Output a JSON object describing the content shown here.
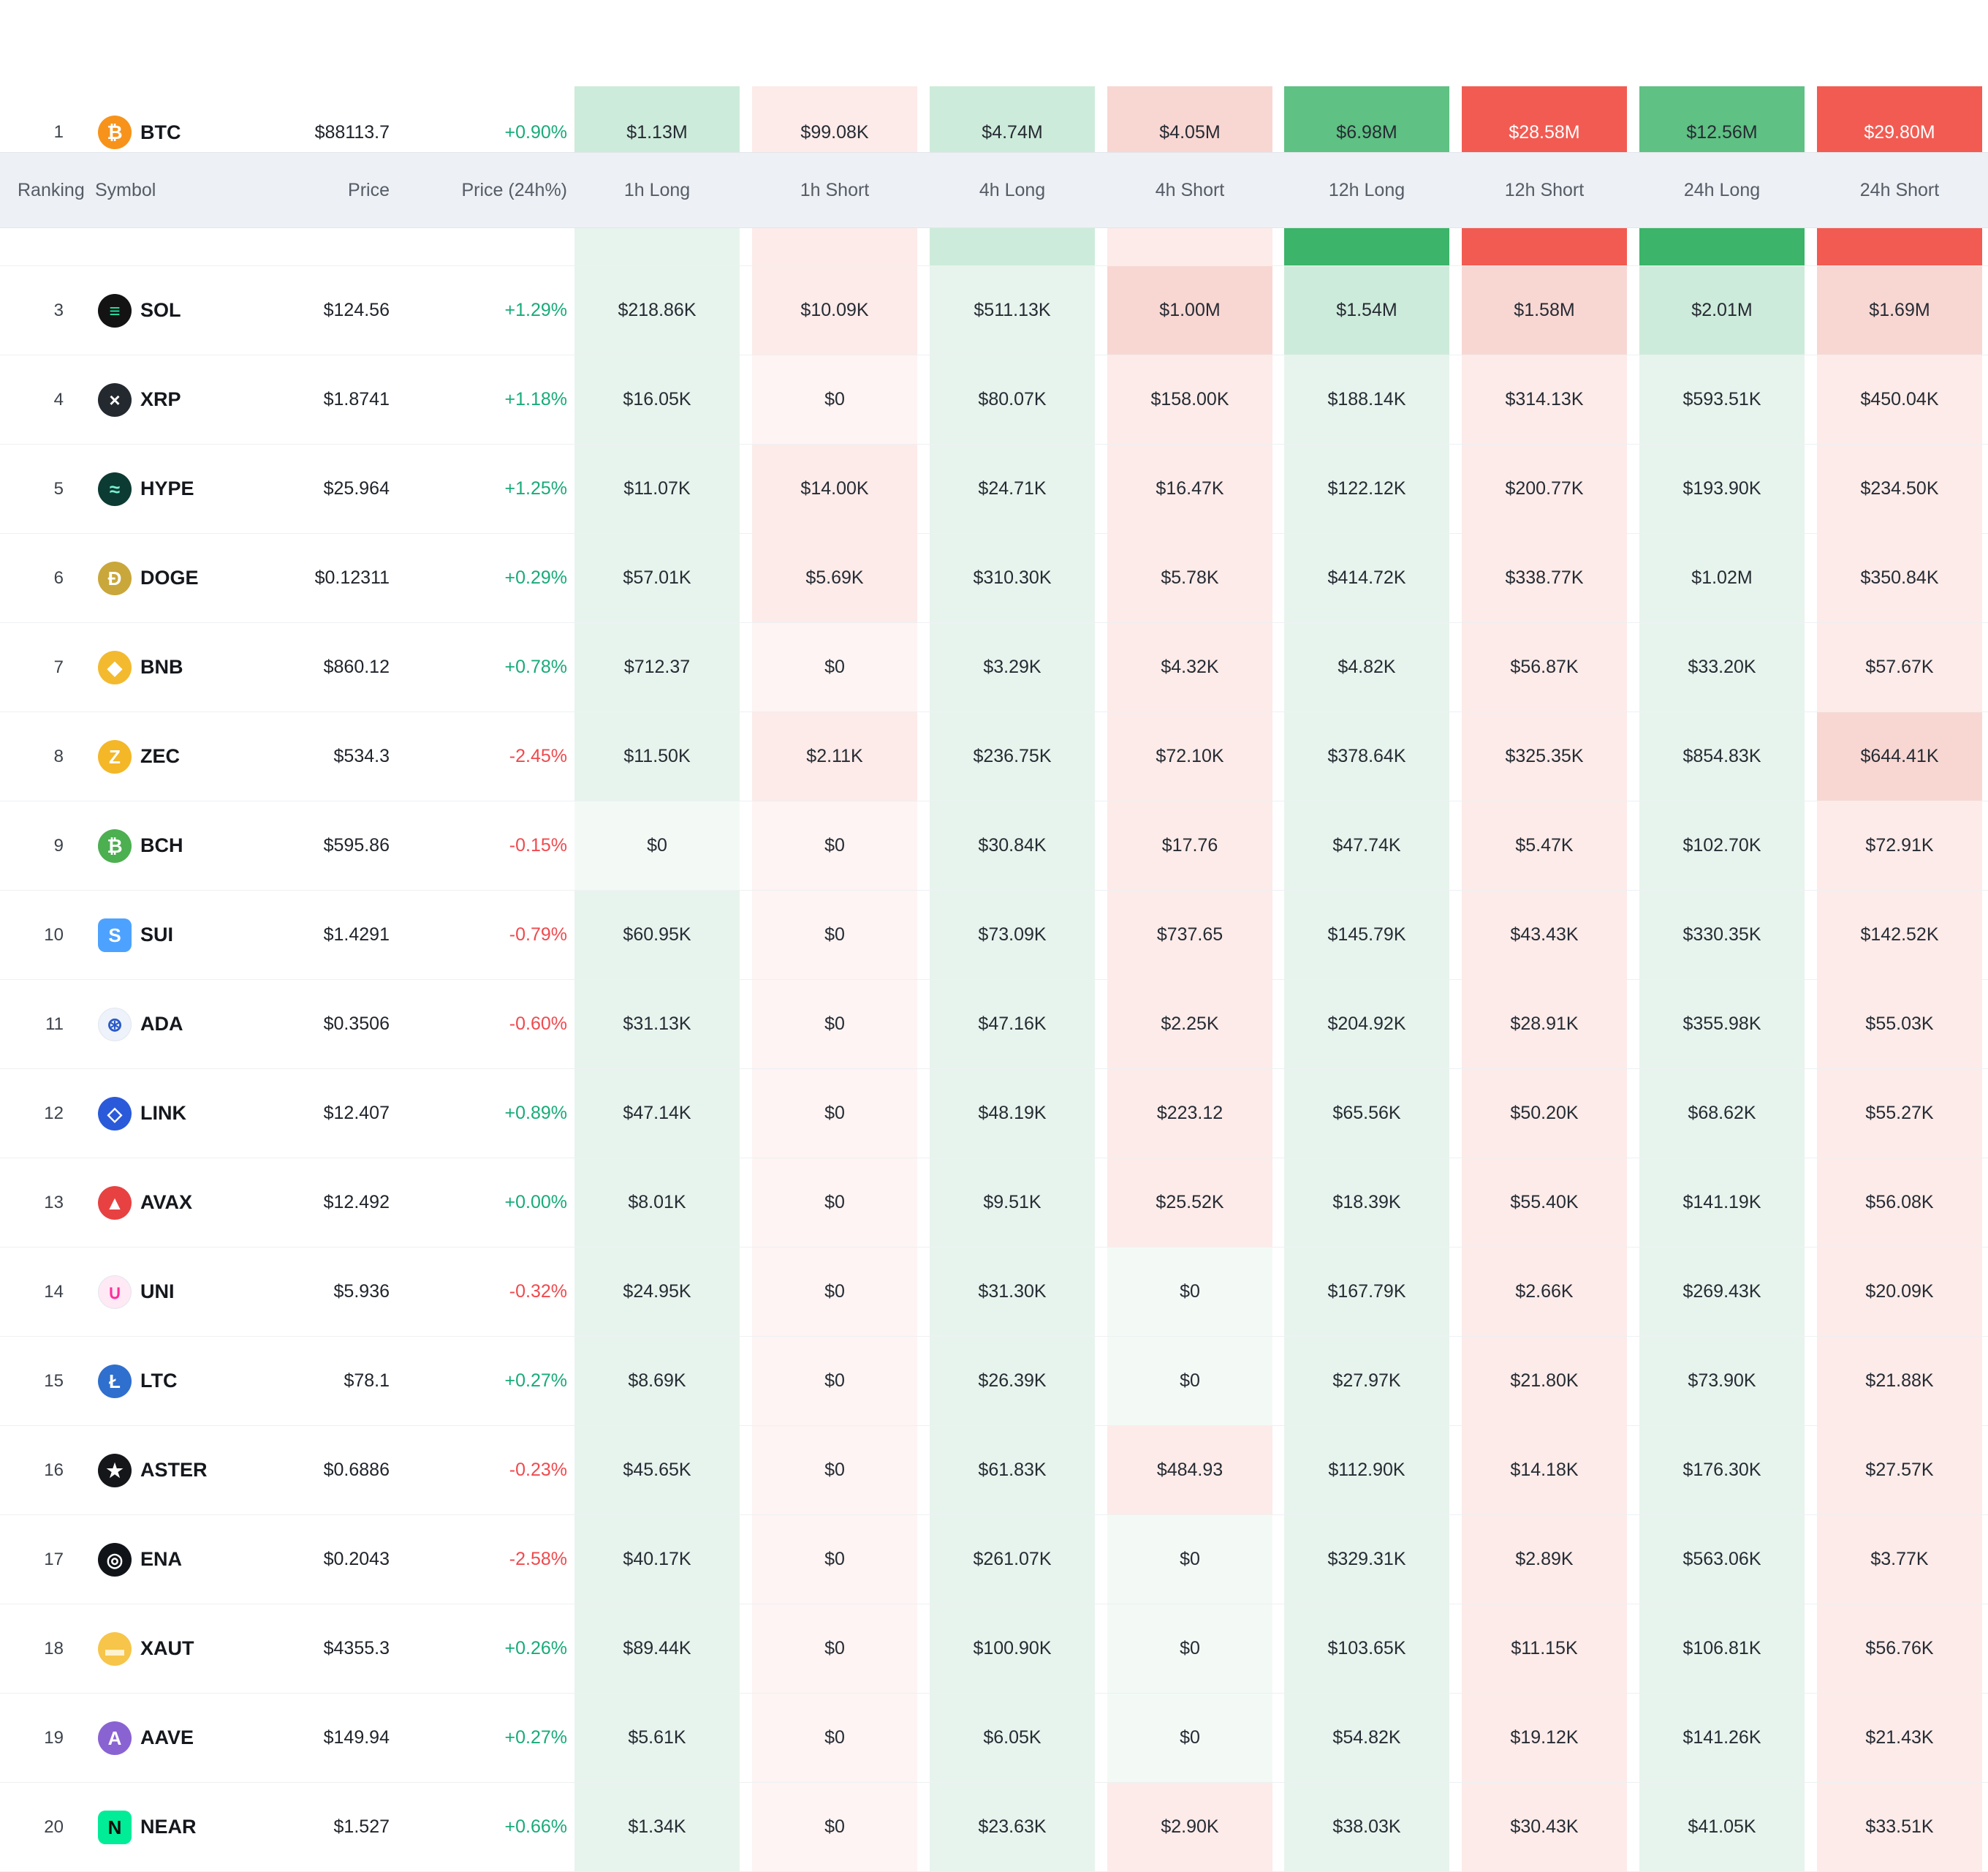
{
  "palette": {
    "g0": "#f3faf6",
    "g1": "#e7f4ed",
    "g2": "#cdebda",
    "g3": "#5fc183",
    "g4": "#3cb469",
    "r0": "#fdf4f3",
    "r1": "#fcebe9",
    "r2": "#f8d7d3",
    "r3": "#f59b93",
    "r4": "#f25b52",
    "pos": "#18ab79",
    "neg": "#ef4a4e",
    "header_bg": "#edf0f4"
  },
  "header": {
    "columns": [
      "Ranking",
      "Symbol",
      "Price",
      "Price (24h%)",
      "1h Long",
      "1h Short",
      "4h Long",
      "4h Short",
      "12h Long",
      "12h Short",
      "24h Long",
      "24h Short"
    ]
  },
  "rows": [
    {
      "rank": "1",
      "symbol": "BTC",
      "price": "$88113.7",
      "change": "+0.90%",
      "dir": "pos",
      "icon": {
        "glyph": "₿",
        "bg": "#f7931a",
        "fg": "#ffffff"
      },
      "cells": [
        {
          "v": "$1.13M",
          "t": "g2"
        },
        {
          "v": "$99.08K",
          "t": "r1"
        },
        {
          "v": "$4.74M",
          "t": "g2"
        },
        {
          "v": "$4.05M",
          "t": "r2"
        },
        {
          "v": "$6.98M",
          "t": "g3"
        },
        {
          "v": "$28.58M",
          "t": "r4"
        },
        {
          "v": "$12.56M",
          "t": "g3"
        },
        {
          "v": "$29.80M",
          "t": "r4"
        }
      ]
    },
    {
      "rank": "",
      "symbol": "",
      "partial": true,
      "cells": [
        {
          "v": "",
          "t": "g1"
        },
        {
          "v": "",
          "t": "r1"
        },
        {
          "v": "",
          "t": "g2"
        },
        {
          "v": "",
          "t": "r1"
        },
        {
          "v": "",
          "t": "g4"
        },
        {
          "v": "",
          "t": "r4"
        },
        {
          "v": "",
          "t": "g4"
        },
        {
          "v": "",
          "t": "r4"
        }
      ]
    },
    {
      "rank": "3",
      "symbol": "SOL",
      "price": "$124.56",
      "change": "+1.29%",
      "dir": "pos",
      "icon": {
        "glyph": "≡",
        "bg": "#131313",
        "fg": "#21e8a3"
      },
      "cells": [
        {
          "v": "$218.86K",
          "t": "g1"
        },
        {
          "v": "$10.09K",
          "t": "r1"
        },
        {
          "v": "$511.13K",
          "t": "g1"
        },
        {
          "v": "$1.00M",
          "t": "r2"
        },
        {
          "v": "$1.54M",
          "t": "g2"
        },
        {
          "v": "$1.58M",
          "t": "r2"
        },
        {
          "v": "$2.01M",
          "t": "g2"
        },
        {
          "v": "$1.69M",
          "t": "r2"
        }
      ]
    },
    {
      "rank": "4",
      "symbol": "XRP",
      "price": "$1.8741",
      "change": "+1.18%",
      "dir": "pos",
      "icon": {
        "glyph": "×",
        "bg": "#23292f",
        "fg": "#ffffff"
      },
      "cells": [
        {
          "v": "$16.05K",
          "t": "g1"
        },
        {
          "v": "$0",
          "t": "r0"
        },
        {
          "v": "$80.07K",
          "t": "g1"
        },
        {
          "v": "$158.00K",
          "t": "r1"
        },
        {
          "v": "$188.14K",
          "t": "g1"
        },
        {
          "v": "$314.13K",
          "t": "r1"
        },
        {
          "v": "$593.51K",
          "t": "g1"
        },
        {
          "v": "$450.04K",
          "t": "r1"
        }
      ]
    },
    {
      "rank": "5",
      "symbol": "HYPE",
      "price": "$25.964",
      "change": "+1.25%",
      "dir": "pos",
      "icon": {
        "glyph": "≈",
        "bg": "#0c3b33",
        "fg": "#79f2d4"
      },
      "cells": [
        {
          "v": "$11.07K",
          "t": "g1"
        },
        {
          "v": "$14.00K",
          "t": "r1"
        },
        {
          "v": "$24.71K",
          "t": "g1"
        },
        {
          "v": "$16.47K",
          "t": "r1"
        },
        {
          "v": "$122.12K",
          "t": "g1"
        },
        {
          "v": "$200.77K",
          "t": "r1"
        },
        {
          "v": "$193.90K",
          "t": "g1"
        },
        {
          "v": "$234.50K",
          "t": "r1"
        }
      ]
    },
    {
      "rank": "6",
      "symbol": "DOGE",
      "price": "$0.12311",
      "change": "+0.29%",
      "dir": "pos",
      "icon": {
        "glyph": "Ð",
        "bg": "#c9a73a",
        "fg": "#ffffff"
      },
      "cells": [
        {
          "v": "$57.01K",
          "t": "g1"
        },
        {
          "v": "$5.69K",
          "t": "r1"
        },
        {
          "v": "$310.30K",
          "t": "g1"
        },
        {
          "v": "$5.78K",
          "t": "r1"
        },
        {
          "v": "$414.72K",
          "t": "g1"
        },
        {
          "v": "$338.77K",
          "t": "r1"
        },
        {
          "v": "$1.02M",
          "t": "g1"
        },
        {
          "v": "$350.84K",
          "t": "r1"
        }
      ]
    },
    {
      "rank": "7",
      "symbol": "BNB",
      "price": "$860.12",
      "change": "+0.78%",
      "dir": "pos",
      "icon": {
        "glyph": "◆",
        "bg": "#f3ba2f",
        "fg": "#ffffff"
      },
      "cells": [
        {
          "v": "$712.37",
          "t": "g1"
        },
        {
          "v": "$0",
          "t": "r0"
        },
        {
          "v": "$3.29K",
          "t": "g1"
        },
        {
          "v": "$4.32K",
          "t": "r1"
        },
        {
          "v": "$4.82K",
          "t": "g1"
        },
        {
          "v": "$56.87K",
          "t": "r1"
        },
        {
          "v": "$33.20K",
          "t": "g1"
        },
        {
          "v": "$57.67K",
          "t": "r1"
        }
      ]
    },
    {
      "rank": "8",
      "symbol": "ZEC",
      "price": "$534.3",
      "change": "-2.45%",
      "dir": "neg",
      "icon": {
        "glyph": "Z",
        "bg": "#f4b728",
        "fg": "#ffffff"
      },
      "cells": [
        {
          "v": "$11.50K",
          "t": "g1"
        },
        {
          "v": "$2.11K",
          "t": "r1"
        },
        {
          "v": "$236.75K",
          "t": "g1"
        },
        {
          "v": "$72.10K",
          "t": "r1"
        },
        {
          "v": "$378.64K",
          "t": "g1"
        },
        {
          "v": "$325.35K",
          "t": "r1"
        },
        {
          "v": "$854.83K",
          "t": "g1"
        },
        {
          "v": "$644.41K",
          "t": "r2"
        }
      ]
    },
    {
      "rank": "9",
      "symbol": "BCH",
      "price": "$595.86",
      "change": "-0.15%",
      "dir": "neg",
      "icon": {
        "glyph": "₿",
        "bg": "#4caf50",
        "fg": "#ffffff"
      },
      "cells": [
        {
          "v": "$0",
          "t": "g0"
        },
        {
          "v": "$0",
          "t": "r0"
        },
        {
          "v": "$30.84K",
          "t": "g1"
        },
        {
          "v": "$17.76",
          "t": "r1"
        },
        {
          "v": "$47.74K",
          "t": "g1"
        },
        {
          "v": "$5.47K",
          "t": "r1"
        },
        {
          "v": "$102.70K",
          "t": "g1"
        },
        {
          "v": "$72.91K",
          "t": "r1"
        }
      ]
    },
    {
      "rank": "10",
      "symbol": "SUI",
      "price": "$1.4291",
      "change": "-0.79%",
      "dir": "neg",
      "icon": {
        "glyph": "S",
        "bg": "#4da2ff",
        "fg": "#ffffff",
        "square": true
      },
      "cells": [
        {
          "v": "$60.95K",
          "t": "g1"
        },
        {
          "v": "$0",
          "t": "r0"
        },
        {
          "v": "$73.09K",
          "t": "g1"
        },
        {
          "v": "$737.65",
          "t": "r1"
        },
        {
          "v": "$145.79K",
          "t": "g1"
        },
        {
          "v": "$43.43K",
          "t": "r1"
        },
        {
          "v": "$330.35K",
          "t": "g1"
        },
        {
          "v": "$142.52K",
          "t": "r1"
        }
      ]
    },
    {
      "rank": "11",
      "symbol": "ADA",
      "price": "$0.3506",
      "change": "-0.60%",
      "dir": "neg",
      "icon": {
        "glyph": "⊛",
        "bg": "#eef3fb",
        "fg": "#2a5ac9",
        "light": true
      },
      "cells": [
        {
          "v": "$31.13K",
          "t": "g1"
        },
        {
          "v": "$0",
          "t": "r0"
        },
        {
          "v": "$47.16K",
          "t": "g1"
        },
        {
          "v": "$2.25K",
          "t": "r1"
        },
        {
          "v": "$204.92K",
          "t": "g1"
        },
        {
          "v": "$28.91K",
          "t": "r1"
        },
        {
          "v": "$355.98K",
          "t": "g1"
        },
        {
          "v": "$55.03K",
          "t": "r1"
        }
      ]
    },
    {
      "rank": "12",
      "symbol": "LINK",
      "price": "$12.407",
      "change": "+0.89%",
      "dir": "pos",
      "icon": {
        "glyph": "◇",
        "bg": "#2a5ada",
        "fg": "#ffffff"
      },
      "cells": [
        {
          "v": "$47.14K",
          "t": "g1"
        },
        {
          "v": "$0",
          "t": "r0"
        },
        {
          "v": "$48.19K",
          "t": "g1"
        },
        {
          "v": "$223.12",
          "t": "r1"
        },
        {
          "v": "$65.56K",
          "t": "g1"
        },
        {
          "v": "$50.20K",
          "t": "r1"
        },
        {
          "v": "$68.62K",
          "t": "g1"
        },
        {
          "v": "$55.27K",
          "t": "r1"
        }
      ]
    },
    {
      "rank": "13",
      "symbol": "AVAX",
      "price": "$12.492",
      "change": "+0.00%",
      "dir": "pos",
      "icon": {
        "glyph": "▲",
        "bg": "#e84142",
        "fg": "#ffffff"
      },
      "cells": [
        {
          "v": "$8.01K",
          "t": "g1"
        },
        {
          "v": "$0",
          "t": "r0"
        },
        {
          "v": "$9.51K",
          "t": "g1"
        },
        {
          "v": "$25.52K",
          "t": "r1"
        },
        {
          "v": "$18.39K",
          "t": "g1"
        },
        {
          "v": "$55.40K",
          "t": "r1"
        },
        {
          "v": "$141.19K",
          "t": "g1"
        },
        {
          "v": "$56.08K",
          "t": "r1"
        }
      ]
    },
    {
      "rank": "14",
      "symbol": "UNI",
      "price": "$5.936",
      "change": "-0.32%",
      "dir": "neg",
      "icon": {
        "glyph": "∪",
        "bg": "#ffe9f4",
        "fg": "#ff2d9c",
        "light": true
      },
      "cells": [
        {
          "v": "$24.95K",
          "t": "g1"
        },
        {
          "v": "$0",
          "t": "r0"
        },
        {
          "v": "$31.30K",
          "t": "g1"
        },
        {
          "v": "$0",
          "t": "g0"
        },
        {
          "v": "$167.79K",
          "t": "g1"
        },
        {
          "v": "$2.66K",
          "t": "r1"
        },
        {
          "v": "$269.43K",
          "t": "g1"
        },
        {
          "v": "$20.09K",
          "t": "r1"
        }
      ]
    },
    {
      "rank": "15",
      "symbol": "LTC",
      "price": "$78.1",
      "change": "+0.27%",
      "dir": "pos",
      "icon": {
        "glyph": "Ł",
        "bg": "#2f6fce",
        "fg": "#ffffff"
      },
      "cells": [
        {
          "v": "$8.69K",
          "t": "g1"
        },
        {
          "v": "$0",
          "t": "r0"
        },
        {
          "v": "$26.39K",
          "t": "g1"
        },
        {
          "v": "$0",
          "t": "g0"
        },
        {
          "v": "$27.97K",
          "t": "g1"
        },
        {
          "v": "$21.80K",
          "t": "r1"
        },
        {
          "v": "$73.90K",
          "t": "g1"
        },
        {
          "v": "$21.88K",
          "t": "r1"
        }
      ]
    },
    {
      "rank": "16",
      "symbol": "ASTER",
      "price": "$0.6886",
      "change": "-0.23%",
      "dir": "neg",
      "icon": {
        "glyph": "★",
        "bg": "#14161a",
        "fg": "#ffffff"
      },
      "cells": [
        {
          "v": "$45.65K",
          "t": "g1"
        },
        {
          "v": "$0",
          "t": "r0"
        },
        {
          "v": "$61.83K",
          "t": "g1"
        },
        {
          "v": "$484.93",
          "t": "r1"
        },
        {
          "v": "$112.90K",
          "t": "g1"
        },
        {
          "v": "$14.18K",
          "t": "r1"
        },
        {
          "v": "$176.30K",
          "t": "g1"
        },
        {
          "v": "$27.57K",
          "t": "r1"
        }
      ]
    },
    {
      "rank": "17",
      "symbol": "ENA",
      "price": "$0.2043",
      "change": "-2.58%",
      "dir": "neg",
      "icon": {
        "glyph": "◎",
        "bg": "#101418",
        "fg": "#ffffff"
      },
      "cells": [
        {
          "v": "$40.17K",
          "t": "g1"
        },
        {
          "v": "$0",
          "t": "r0"
        },
        {
          "v": "$261.07K",
          "t": "g1"
        },
        {
          "v": "$0",
          "t": "g0"
        },
        {
          "v": "$329.31K",
          "t": "g1"
        },
        {
          "v": "$2.89K",
          "t": "r1"
        },
        {
          "v": "$563.06K",
          "t": "g1"
        },
        {
          "v": "$3.77K",
          "t": "r1"
        }
      ]
    },
    {
      "rank": "18",
      "symbol": "XAUT",
      "price": "$4355.3",
      "change": "+0.26%",
      "dir": "pos",
      "icon": {
        "glyph": "▬",
        "bg": "#f6c54a",
        "fg": "#fff3cf"
      },
      "cells": [
        {
          "v": "$89.44K",
          "t": "g1"
        },
        {
          "v": "$0",
          "t": "r0"
        },
        {
          "v": "$100.90K",
          "t": "g1"
        },
        {
          "v": "$0",
          "t": "g0"
        },
        {
          "v": "$103.65K",
          "t": "g1"
        },
        {
          "v": "$11.15K",
          "t": "r1"
        },
        {
          "v": "$106.81K",
          "t": "g1"
        },
        {
          "v": "$56.76K",
          "t": "r1"
        }
      ]
    },
    {
      "rank": "19",
      "symbol": "AAVE",
      "price": "$149.94",
      "change": "+0.27%",
      "dir": "pos",
      "icon": {
        "glyph": "A",
        "bg": "#8a63d2",
        "fg": "#ffffff"
      },
      "cells": [
        {
          "v": "$5.61K",
          "t": "g1"
        },
        {
          "v": "$0",
          "t": "r0"
        },
        {
          "v": "$6.05K",
          "t": "g1"
        },
        {
          "v": "$0",
          "t": "g0"
        },
        {
          "v": "$54.82K",
          "t": "g1"
        },
        {
          "v": "$19.12K",
          "t": "r1"
        },
        {
          "v": "$141.26K",
          "t": "g1"
        },
        {
          "v": "$21.43K",
          "t": "r1"
        }
      ]
    },
    {
      "rank": "20",
      "symbol": "NEAR",
      "price": "$1.527",
      "change": "+0.66%",
      "dir": "pos",
      "icon": {
        "glyph": "N",
        "bg": "#00ec97",
        "fg": "#0b0b0b",
        "square": true
      },
      "cells": [
        {
          "v": "$1.34K",
          "t": "g1"
        },
        {
          "v": "$0",
          "t": "r0"
        },
        {
          "v": "$23.63K",
          "t": "g1"
        },
        {
          "v": "$2.90K",
          "t": "r1"
        },
        {
          "v": "$38.03K",
          "t": "g1"
        },
        {
          "v": "$30.43K",
          "t": "r1"
        },
        {
          "v": "$41.05K",
          "t": "g1"
        },
        {
          "v": "$33.51K",
          "t": "r1"
        }
      ]
    }
  ]
}
